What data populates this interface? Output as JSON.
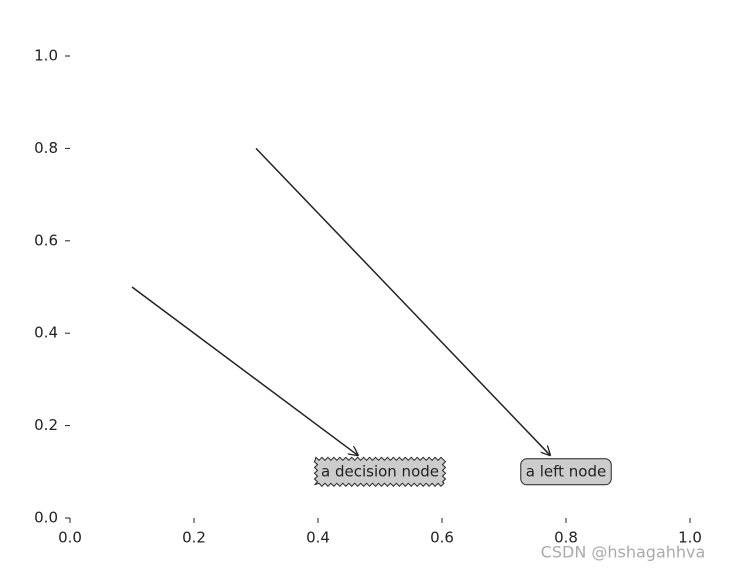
{
  "chart_data": {
    "type": "annotation",
    "xlim": [
      0,
      1
    ],
    "ylim": [
      0,
      1
    ],
    "xticks": [
      {
        "value": 0,
        "label": "0.0"
      },
      {
        "value": 0.2,
        "label": "0.2"
      },
      {
        "value": 0.4,
        "label": "0.4"
      },
      {
        "value": 0.6,
        "label": "0.6"
      },
      {
        "value": 0.8,
        "label": "0.8"
      },
      {
        "value": 1,
        "label": "1.0"
      }
    ],
    "yticks": [
      {
        "value": 0,
        "label": "0.0"
      },
      {
        "value": 0.2,
        "label": "0.2"
      },
      {
        "value": 0.4,
        "label": "0.4"
      },
      {
        "value": 0.6,
        "label": "0.6"
      },
      {
        "value": 0.8,
        "label": "0.8"
      },
      {
        "value": 1,
        "label": "1.0"
      }
    ],
    "box_color": "#cccccc",
    "annotations": [
      {
        "text": "a decision node",
        "xy": [
          0.1,
          0.5
        ],
        "xytext": [
          0.5,
          0.1
        ],
        "box": "sawtooth"
      },
      {
        "text": "a left node",
        "xy": [
          0.3,
          0.8
        ],
        "xytext": [
          0.8,
          0.1
        ],
        "box": "round4"
      }
    ],
    "watermark": "CSDN @hshagahhva"
  }
}
